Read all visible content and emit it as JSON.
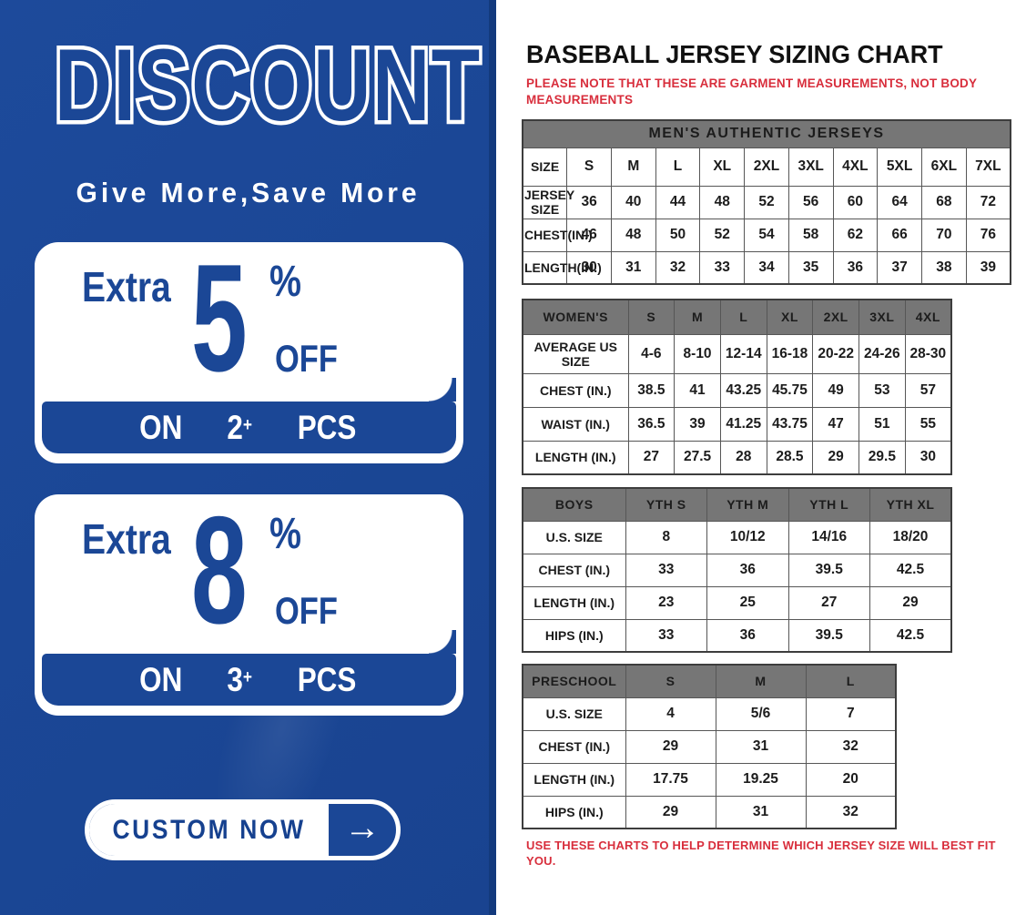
{
  "colors": {
    "promo_blue": "#1b4796",
    "promo_dark_edge": "#133a7d",
    "accent_navy": "#16418f",
    "header_gray": "#767676",
    "note_red": "#d82e3c"
  },
  "left_panel": {
    "title": "DISCOUNT",
    "tagline": "Give More,Save More",
    "offers": [
      {
        "prefix": "Extra",
        "value": "5",
        "percent": "%",
        "off": "OFF",
        "on": "ON",
        "qty": "2",
        "plus": "+",
        "pcs": "PCS"
      },
      {
        "prefix": "Extra",
        "value": "8",
        "percent": "%",
        "off": "OFF",
        "on": "ON",
        "qty": "3",
        "plus": "+",
        "pcs": "PCS"
      }
    ],
    "cta": {
      "label": "CUSTOM NOW",
      "arrow": "→"
    }
  },
  "right_panel": {
    "title": "BASEBALL JERSEY SIZING CHART",
    "note_top": "PLEASE NOTE THAT THESE ARE GARMENT MEASUREMENTS, NOT BODY MEASUREMENTS",
    "note_bottom": "USE THESE CHARTS TO HELP DETERMINE WHICH JERSEY SIZE WILL BEST FIT YOU.",
    "tables": {
      "mens": {
        "banner": "MEN'S AUTHENTIC JERSEYS",
        "rows": [
          [
            "SIZE",
            "S",
            "M",
            "L",
            "XL",
            "2XL",
            "3XL",
            "4XL",
            "5XL",
            "6XL",
            "7XL"
          ],
          [
            "JERSEY SIZE",
            "36",
            "40",
            "44",
            "48",
            "52",
            "56",
            "60",
            "64",
            "68",
            "72"
          ],
          [
            "CHEST(IN.)",
            "46",
            "48",
            "50",
            "52",
            "54",
            "58",
            "62",
            "66",
            "70",
            "76"
          ],
          [
            "LENGTH(IN.)",
            "30",
            "31",
            "32",
            "33",
            "34",
            "35",
            "36",
            "37",
            "38",
            "39"
          ]
        ]
      },
      "womens": {
        "header": [
          "WOMEN'S",
          "S",
          "M",
          "L",
          "XL",
          "2XL",
          "3XL",
          "4XL"
        ],
        "rows": [
          [
            "AVERAGE US SIZE",
            "4-6",
            "8-10",
            "12-14",
            "16-18",
            "20-22",
            "24-26",
            "28-30"
          ],
          [
            "CHEST (IN.)",
            "38.5",
            "41",
            "43.25",
            "45.75",
            "49",
            "53",
            "57"
          ],
          [
            "WAIST (IN.)",
            "36.5",
            "39",
            "41.25",
            "43.75",
            "47",
            "51",
            "55"
          ],
          [
            "LENGTH (IN.)",
            "27",
            "27.5",
            "28",
            "28.5",
            "29",
            "29.5",
            "30"
          ]
        ]
      },
      "boys": {
        "header": [
          "BOYS",
          "YTH S",
          "YTH M",
          "YTH L",
          "YTH XL"
        ],
        "rows": [
          [
            "U.S. SIZE",
            "8",
            "10/12",
            "14/16",
            "18/20"
          ],
          [
            "CHEST (IN.)",
            "33",
            "36",
            "39.5",
            "42.5"
          ],
          [
            "LENGTH (IN.)",
            "23",
            "25",
            "27",
            "29"
          ],
          [
            "HIPS (IN.)",
            "33",
            "36",
            "39.5",
            "42.5"
          ]
        ]
      },
      "preschool": {
        "header": [
          "PRESCHOOL",
          "S",
          "M",
          "L"
        ],
        "rows": [
          [
            "U.S. SIZE",
            "4",
            "5/6",
            "7"
          ],
          [
            "CHEST (IN.)",
            "29",
            "31",
            "32"
          ],
          [
            "LENGTH (IN.)",
            "17.75",
            "19.25",
            "20"
          ],
          [
            "HIPS (IN.)",
            "29",
            "31",
            "32"
          ]
        ]
      }
    }
  }
}
